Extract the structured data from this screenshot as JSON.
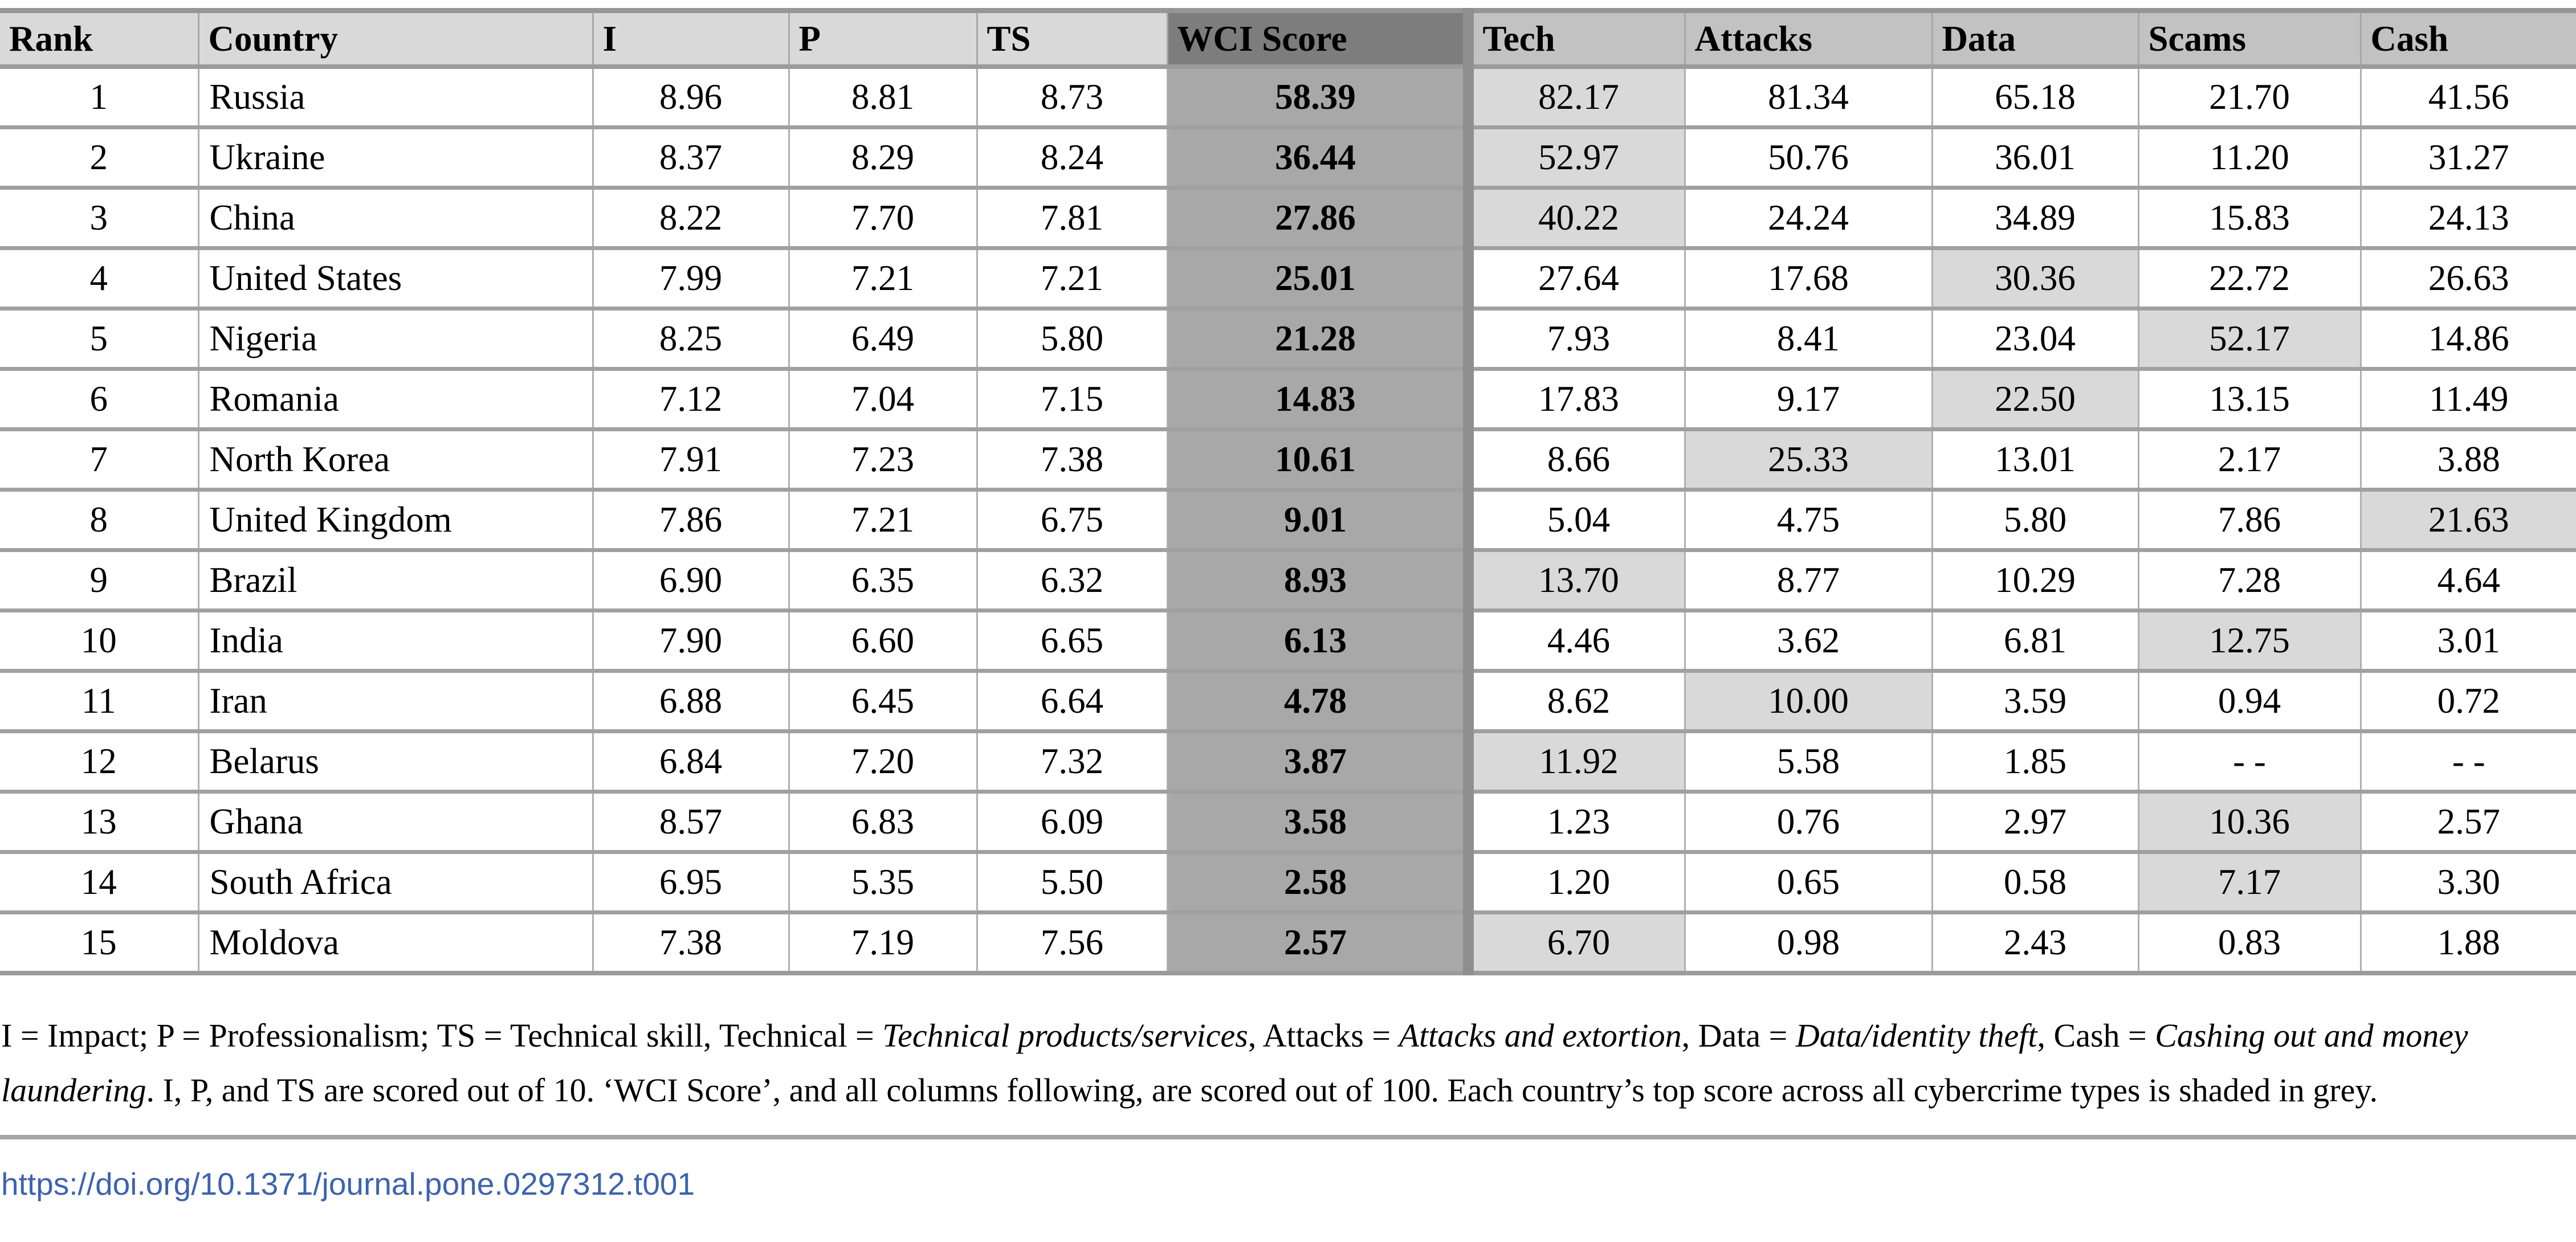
{
  "table": {
    "columns": [
      {
        "key": "rank",
        "label": "Rank",
        "group": "light"
      },
      {
        "key": "country",
        "label": "Country",
        "group": "light"
      },
      {
        "key": "i",
        "label": "I",
        "group": "light"
      },
      {
        "key": "p",
        "label": "P",
        "group": "light"
      },
      {
        "key": "ts",
        "label": "TS",
        "group": "light"
      },
      {
        "key": "wci",
        "label": "WCI Score",
        "group": "dark"
      },
      {
        "key": "tech",
        "label": "Tech",
        "group": "mid"
      },
      {
        "key": "attacks",
        "label": "Attacks",
        "group": "mid"
      },
      {
        "key": "data",
        "label": "Data",
        "group": "mid"
      },
      {
        "key": "scams",
        "label": "Scams",
        "group": "mid"
      },
      {
        "key": "cash",
        "label": "Cash",
        "group": "mid"
      }
    ],
    "rows": [
      {
        "rank": "1",
        "country": "Russia",
        "i": "8.96",
        "p": "8.81",
        "ts": "8.73",
        "wci": "58.39",
        "tech": "82.17",
        "attacks": "81.34",
        "data": "65.18",
        "scams": "21.70",
        "cash": "41.56",
        "top": "tech"
      },
      {
        "rank": "2",
        "country": "Ukraine",
        "i": "8.37",
        "p": "8.29",
        "ts": "8.24",
        "wci": "36.44",
        "tech": "52.97",
        "attacks": "50.76",
        "data": "36.01",
        "scams": "11.20",
        "cash": "31.27",
        "top": "tech"
      },
      {
        "rank": "3",
        "country": "China",
        "i": "8.22",
        "p": "7.70",
        "ts": "7.81",
        "wci": "27.86",
        "tech": "40.22",
        "attacks": "24.24",
        "data": "34.89",
        "scams": "15.83",
        "cash": "24.13",
        "top": "tech"
      },
      {
        "rank": "4",
        "country": "United States",
        "i": "7.99",
        "p": "7.21",
        "ts": "7.21",
        "wci": "25.01",
        "tech": "27.64",
        "attacks": "17.68",
        "data": "30.36",
        "scams": "22.72",
        "cash": "26.63",
        "top": "data"
      },
      {
        "rank": "5",
        "country": "Nigeria",
        "i": "8.25",
        "p": "6.49",
        "ts": "5.80",
        "wci": "21.28",
        "tech": "7.93",
        "attacks": "8.41",
        "data": "23.04",
        "scams": "52.17",
        "cash": "14.86",
        "top": "scams"
      },
      {
        "rank": "6",
        "country": "Romania",
        "i": "7.12",
        "p": "7.04",
        "ts": "7.15",
        "wci": "14.83",
        "tech": "17.83",
        "attacks": "9.17",
        "data": "22.50",
        "scams": "13.15",
        "cash": "11.49",
        "top": "data"
      },
      {
        "rank": "7",
        "country": "North Korea",
        "i": "7.91",
        "p": "7.23",
        "ts": "7.38",
        "wci": "10.61",
        "tech": "8.66",
        "attacks": "25.33",
        "data": "13.01",
        "scams": "2.17",
        "cash": "3.88",
        "top": "attacks"
      },
      {
        "rank": "8",
        "country": "United Kingdom",
        "i": "7.86",
        "p": "7.21",
        "ts": "6.75",
        "wci": "9.01",
        "tech": "5.04",
        "attacks": "4.75",
        "data": "5.80",
        "scams": "7.86",
        "cash": "21.63",
        "top": "cash"
      },
      {
        "rank": "9",
        "country": "Brazil",
        "i": "6.90",
        "p": "6.35",
        "ts": "6.32",
        "wci": "8.93",
        "tech": "13.70",
        "attacks": "8.77",
        "data": "10.29",
        "scams": "7.28",
        "cash": "4.64",
        "top": "tech"
      },
      {
        "rank": "10",
        "country": "India",
        "i": "7.90",
        "p": "6.60",
        "ts": "6.65",
        "wci": "6.13",
        "tech": "4.46",
        "attacks": "3.62",
        "data": "6.81",
        "scams": "12.75",
        "cash": "3.01",
        "top": "scams"
      },
      {
        "rank": "11",
        "country": "Iran",
        "i": "6.88",
        "p": "6.45",
        "ts": "6.64",
        "wci": "4.78",
        "tech": "8.62",
        "attacks": "10.00",
        "data": "3.59",
        "scams": "0.94",
        "cash": "0.72",
        "top": "attacks"
      },
      {
        "rank": "12",
        "country": "Belarus",
        "i": "6.84",
        "p": "7.20",
        "ts": "7.32",
        "wci": "3.87",
        "tech": "11.92",
        "attacks": "5.58",
        "data": "1.85",
        "scams": "- -",
        "cash": "- -",
        "top": "tech"
      },
      {
        "rank": "13",
        "country": "Ghana",
        "i": "8.57",
        "p": "6.83",
        "ts": "6.09",
        "wci": "3.58",
        "tech": "1.23",
        "attacks": "0.76",
        "data": "2.97",
        "scams": "10.36",
        "cash": "2.57",
        "top": "scams"
      },
      {
        "rank": "14",
        "country": "South Africa",
        "i": "6.95",
        "p": "5.35",
        "ts": "5.50",
        "wci": "2.58",
        "tech": "1.20",
        "attacks": "0.65",
        "data": "0.58",
        "scams": "7.17",
        "cash": "3.30",
        "top": "scams"
      },
      {
        "rank": "15",
        "country": "Moldova",
        "i": "7.38",
        "p": "7.19",
        "ts": "7.56",
        "wci": "2.57",
        "tech": "6.70",
        "attacks": "0.98",
        "data": "2.43",
        "scams": "0.83",
        "cash": "1.88",
        "top": "tech"
      }
    ]
  },
  "footnote": {
    "segments": [
      {
        "text": "I = Impact; P = Professionalism; TS = Technical skill, Technical = ",
        "italic": false
      },
      {
        "text": "Technical products/services",
        "italic": true
      },
      {
        "text": ", Attacks = ",
        "italic": false
      },
      {
        "text": "Attacks and extortion",
        "italic": true
      },
      {
        "text": ", Data = ",
        "italic": false
      },
      {
        "text": "Data/identity theft",
        "italic": true
      },
      {
        "text": ", Cash = ",
        "italic": false
      },
      {
        "text": "Cashing out and money laundering",
        "italic": true
      },
      {
        "text": ". I, P, and TS are scored out of 10. ‘WCI Score’, and all columns following, are scored out of 100. Each country’s top score across all cybercrime types is shaded in grey.",
        "italic": false
      }
    ]
  },
  "doi": "https://doi.org/10.1371/journal.pone.0297312.t001",
  "colors": {
    "header_light": "#d9d9d9",
    "header_mid": "#c2c2c2",
    "header_dark": "#7d7d7d",
    "wci_cell": "#a8a8a8",
    "top_score_shade": "#d9d9d9",
    "row_border": "#a0a0a0",
    "link": "#3c63af"
  }
}
